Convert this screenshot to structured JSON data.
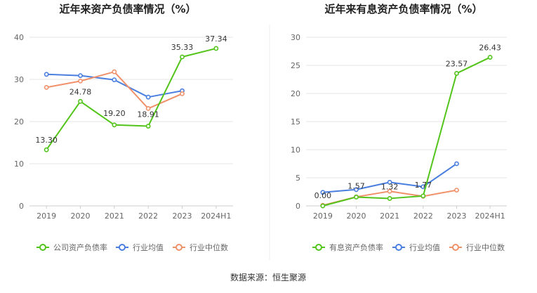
{
  "colors": {
    "company": "#52c41a",
    "avg": "#4a7fe0",
    "median": "#f0916a",
    "grid": "#e6e6e6",
    "axis_text": "#666666",
    "title_text": "#222222",
    "label_text": "#333333",
    "divider": "#eeeeee"
  },
  "source": "数据来源：恒生聚源",
  "chart_data": [
    {
      "type": "line",
      "title": "近年来资产负债率情况（%）",
      "categories": [
        "2019",
        "2020",
        "2021",
        "2022",
        "2023",
        "2024H1"
      ],
      "ylim": [
        0,
        40
      ],
      "yticks": [
        0,
        10,
        20,
        30,
        40
      ],
      "grid": true,
      "legend_position": "bottom",
      "series": [
        {
          "name": "公司资产负债率",
          "values": [
            13.3,
            24.78,
            19.2,
            18.91,
            35.33,
            37.34
          ],
          "labels": [
            "13.30",
            "24.78",
            "19.20",
            "18.91",
            "35.33",
            "37.34"
          ],
          "color_key": "company"
        },
        {
          "name": "行业均值",
          "values": [
            31.2,
            30.9,
            29.9,
            25.8,
            27.3,
            null
          ],
          "color_key": "avg"
        },
        {
          "name": "行业中位数",
          "values": [
            28.1,
            29.6,
            31.8,
            23.1,
            26.6,
            null
          ],
          "color_key": "median"
        }
      ]
    },
    {
      "type": "line",
      "title": "近年来有息资产负债率情况（%）",
      "categories": [
        "2019",
        "2020",
        "2021",
        "2022",
        "2023",
        "2024H1"
      ],
      "ylim": [
        0,
        30
      ],
      "yticks": [
        0,
        5,
        10,
        15,
        20,
        25,
        30
      ],
      "grid": true,
      "legend_position": "bottom",
      "series": [
        {
          "name": "有息资产负债率",
          "values": [
            0.0,
            1.57,
            1.32,
            1.77,
            23.57,
            26.43
          ],
          "labels": [
            "0.00",
            "1.57",
            "1.32",
            "1.77",
            "23.57",
            "26.43"
          ],
          "color_key": "company"
        },
        {
          "name": "行业均值",
          "values": [
            2.4,
            2.9,
            4.2,
            3.4,
            7.5,
            null
          ],
          "color_key": "avg"
        },
        {
          "name": "行业中位数",
          "values": [
            0.1,
            1.6,
            2.6,
            1.7,
            2.8,
            null
          ],
          "color_key": "median"
        }
      ]
    }
  ]
}
